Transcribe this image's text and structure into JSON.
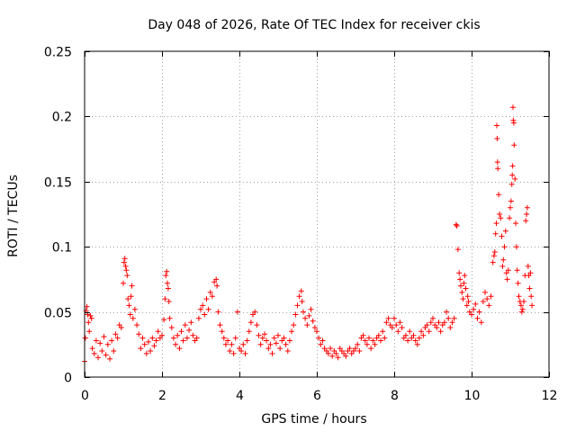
{
  "chart_data": {
    "type": "scatter",
    "title": "Day 048 of 2026, Rate Of TEC Index for receiver ckis",
    "xlabel": "GPS time / hours",
    "ylabel": "ROTI / TECUs",
    "xlim": [
      0,
      12
    ],
    "ylim": [
      0,
      0.25
    ],
    "x_ticks": [
      0,
      2,
      4,
      6,
      8,
      10,
      12
    ],
    "x_tick_labels": [
      "0",
      "2",
      "4",
      "6",
      "8",
      "10",
      "12"
    ],
    "y_ticks": [
      0,
      0.05,
      0.1,
      0.15,
      0.2,
      0.25
    ],
    "y_tick_labels": [
      "0",
      "0.05",
      "0.1",
      "0.15",
      "0.2",
      "0.25"
    ],
    "grid": true,
    "marker": "+",
    "color": "#ff0000",
    "series": [
      {
        "name": "ROTI",
        "points": [
          [
            0.0,
            0.012
          ],
          [
            0.02,
            0.03
          ],
          [
            0.04,
            0.051
          ],
          [
            0.06,
            0.054
          ],
          [
            0.08,
            0.048
          ],
          [
            0.1,
            0.042
          ],
          [
            0.12,
            0.035
          ],
          [
            0.15,
            0.047
          ],
          [
            0.18,
            0.045
          ],
          [
            0.2,
            0.022
          ],
          [
            0.25,
            0.018
          ],
          [
            0.3,
            0.028
          ],
          [
            0.35,
            0.015
          ],
          [
            0.4,
            0.026
          ],
          [
            0.45,
            0.02
          ],
          [
            0.5,
            0.031
          ],
          [
            0.55,
            0.017
          ],
          [
            0.6,
            0.025
          ],
          [
            0.65,
            0.014
          ],
          [
            0.7,
            0.028
          ],
          [
            0.75,
            0.02
          ],
          [
            0.8,
            0.033
          ],
          [
            0.85,
            0.03
          ],
          [
            0.9,
            0.04
          ],
          [
            0.95,
            0.038
          ],
          [
            1.0,
            0.072
          ],
          [
            1.02,
            0.088
          ],
          [
            1.04,
            0.091
          ],
          [
            1.06,
            0.085
          ],
          [
            1.08,
            0.082
          ],
          [
            1.1,
            0.078
          ],
          [
            1.12,
            0.06
          ],
          [
            1.15,
            0.055
          ],
          [
            1.18,
            0.048
          ],
          [
            1.2,
            0.062
          ],
          [
            1.22,
            0.07
          ],
          [
            1.25,
            0.045
          ],
          [
            1.3,
            0.052
          ],
          [
            1.35,
            0.04
          ],
          [
            1.4,
            0.033
          ],
          [
            1.45,
            0.022
          ],
          [
            1.5,
            0.03
          ],
          [
            1.55,
            0.025
          ],
          [
            1.6,
            0.018
          ],
          [
            1.65,
            0.027
          ],
          [
            1.7,
            0.02
          ],
          [
            1.75,
            0.03
          ],
          [
            1.8,
            0.024
          ],
          [
            1.85,
            0.028
          ],
          [
            1.9,
            0.035
          ],
          [
            1.95,
            0.03
          ],
          [
            2.0,
            0.032
          ],
          [
            2.05,
            0.044
          ],
          [
            2.08,
            0.06
          ],
          [
            2.1,
            0.078
          ],
          [
            2.12,
            0.081
          ],
          [
            2.14,
            0.072
          ],
          [
            2.16,
            0.068
          ],
          [
            2.18,
            0.058
          ],
          [
            2.2,
            0.045
          ],
          [
            2.25,
            0.038
          ],
          [
            2.3,
            0.03
          ],
          [
            2.35,
            0.025
          ],
          [
            2.4,
            0.032
          ],
          [
            2.45,
            0.022
          ],
          [
            2.5,
            0.035
          ],
          [
            2.55,
            0.028
          ],
          [
            2.6,
            0.04
          ],
          [
            2.65,
            0.03
          ],
          [
            2.7,
            0.036
          ],
          [
            2.75,
            0.042
          ],
          [
            2.8,
            0.032
          ],
          [
            2.85,
            0.028
          ],
          [
            2.9,
            0.03
          ],
          [
            2.95,
            0.045
          ],
          [
            3.0,
            0.052
          ],
          [
            3.05,
            0.055
          ],
          [
            3.1,
            0.048
          ],
          [
            3.15,
            0.06
          ],
          [
            3.2,
            0.052
          ],
          [
            3.25,
            0.065
          ],
          [
            3.3,
            0.062
          ],
          [
            3.35,
            0.073
          ],
          [
            3.4,
            0.075
          ],
          [
            3.42,
            0.07
          ],
          [
            3.45,
            0.05
          ],
          [
            3.5,
            0.04
          ],
          [
            3.55,
            0.035
          ],
          [
            3.6,
            0.03
          ],
          [
            3.65,
            0.025
          ],
          [
            3.7,
            0.028
          ],
          [
            3.75,
            0.02
          ],
          [
            3.8,
            0.025
          ],
          [
            3.85,
            0.018
          ],
          [
            3.9,
            0.03
          ],
          [
            3.95,
            0.05
          ],
          [
            4.0,
            0.022
          ],
          [
            4.05,
            0.02
          ],
          [
            4.1,
            0.025
          ],
          [
            4.15,
            0.018
          ],
          [
            4.2,
            0.028
          ],
          [
            4.25,
            0.035
          ],
          [
            4.3,
            0.042
          ],
          [
            4.35,
            0.048
          ],
          [
            4.4,
            0.05
          ],
          [
            4.45,
            0.04
          ],
          [
            4.5,
            0.032
          ],
          [
            4.55,
            0.025
          ],
          [
            4.6,
            0.03
          ],
          [
            4.65,
            0.033
          ],
          [
            4.7,
            0.028
          ],
          [
            4.75,
            0.022
          ],
          [
            4.8,
            0.025
          ],
          [
            4.85,
            0.018
          ],
          [
            4.9,
            0.03
          ],
          [
            4.95,
            0.026
          ],
          [
            5.0,
            0.032
          ],
          [
            5.05,
            0.022
          ],
          [
            5.1,
            0.028
          ],
          [
            5.15,
            0.03
          ],
          [
            5.2,
            0.025
          ],
          [
            5.25,
            0.02
          ],
          [
            5.3,
            0.028
          ],
          [
            5.35,
            0.035
          ],
          [
            5.4,
            0.04
          ],
          [
            5.45,
            0.048
          ],
          [
            5.5,
            0.055
          ],
          [
            5.55,
            0.062
          ],
          [
            5.6,
            0.066
          ],
          [
            5.62,
            0.058
          ],
          [
            5.65,
            0.05
          ],
          [
            5.7,
            0.045
          ],
          [
            5.75,
            0.04
          ],
          [
            5.8,
            0.047
          ],
          [
            5.85,
            0.052
          ],
          [
            5.9,
            0.043
          ],
          [
            5.95,
            0.038
          ],
          [
            6.0,
            0.035
          ],
          [
            6.05,
            0.03
          ],
          [
            6.1,
            0.025
          ],
          [
            6.15,
            0.028
          ],
          [
            6.2,
            0.022
          ],
          [
            6.25,
            0.02
          ],
          [
            6.3,
            0.018
          ],
          [
            6.35,
            0.022
          ],
          [
            6.4,
            0.016
          ],
          [
            6.45,
            0.02
          ],
          [
            6.5,
            0.018
          ],
          [
            6.55,
            0.015
          ],
          [
            6.6,
            0.022
          ],
          [
            6.65,
            0.02
          ],
          [
            6.7,
            0.018
          ],
          [
            6.75,
            0.016
          ],
          [
            6.8,
            0.02
          ],
          [
            6.85,
            0.022
          ],
          [
            6.9,
            0.018
          ],
          [
            6.95,
            0.02
          ],
          [
            7.0,
            0.022
          ],
          [
            7.05,
            0.025
          ],
          [
            7.1,
            0.02
          ],
          [
            7.15,
            0.03
          ],
          [
            7.2,
            0.032
          ],
          [
            7.25,
            0.028
          ],
          [
            7.3,
            0.025
          ],
          [
            7.35,
            0.03
          ],
          [
            7.4,
            0.022
          ],
          [
            7.45,
            0.028
          ],
          [
            7.5,
            0.025
          ],
          [
            7.55,
            0.03
          ],
          [
            7.6,
            0.032
          ],
          [
            7.65,
            0.028
          ],
          [
            7.7,
            0.035
          ],
          [
            7.75,
            0.03
          ],
          [
            7.8,
            0.042
          ],
          [
            7.85,
            0.045
          ],
          [
            7.9,
            0.04
          ],
          [
            7.95,
            0.038
          ],
          [
            8.0,
            0.045
          ],
          [
            8.05,
            0.04
          ],
          [
            8.1,
            0.035
          ],
          [
            8.15,
            0.042
          ],
          [
            8.2,
            0.038
          ],
          [
            8.25,
            0.03
          ],
          [
            8.3,
            0.032
          ],
          [
            8.35,
            0.028
          ],
          [
            8.4,
            0.035
          ],
          [
            8.45,
            0.03
          ],
          [
            8.5,
            0.032
          ],
          [
            8.55,
            0.028
          ],
          [
            8.6,
            0.025
          ],
          [
            8.65,
            0.03
          ],
          [
            8.7,
            0.035
          ],
          [
            8.75,
            0.032
          ],
          [
            8.8,
            0.038
          ],
          [
            8.85,
            0.04
          ],
          [
            8.9,
            0.035
          ],
          [
            8.95,
            0.042
          ],
          [
            9.0,
            0.045
          ],
          [
            9.05,
            0.04
          ],
          [
            9.1,
            0.038
          ],
          [
            9.15,
            0.042
          ],
          [
            9.2,
            0.035
          ],
          [
            9.25,
            0.04
          ],
          [
            9.3,
            0.042
          ],
          [
            9.35,
            0.05
          ],
          [
            9.4,
            0.045
          ],
          [
            9.45,
            0.038
          ],
          [
            9.5,
            0.042
          ],
          [
            9.55,
            0.045
          ],
          [
            9.6,
            0.117
          ],
          [
            9.62,
            0.116
          ],
          [
            9.65,
            0.098
          ],
          [
            9.68,
            0.08
          ],
          [
            9.7,
            0.075
          ],
          [
            9.72,
            0.07
          ],
          [
            9.75,
            0.065
          ],
          [
            9.78,
            0.06
          ],
          [
            9.8,
            0.072
          ],
          [
            9.82,
            0.078
          ],
          [
            9.85,
            0.068
          ],
          [
            9.88,
            0.055
          ],
          [
            9.9,
            0.062
          ],
          [
            9.92,
            0.058
          ],
          [
            9.95,
            0.05
          ],
          [
            10.0,
            0.048
          ],
          [
            10.05,
            0.052
          ],
          [
            10.1,
            0.056
          ],
          [
            10.15,
            0.045
          ],
          [
            10.2,
            0.05
          ],
          [
            10.25,
            0.042
          ],
          [
            10.3,
            0.058
          ],
          [
            10.35,
            0.065
          ],
          [
            10.4,
            0.06
          ],
          [
            10.45,
            0.055
          ],
          [
            10.5,
            0.062
          ],
          [
            10.55,
            0.088
          ],
          [
            10.58,
            0.093
          ],
          [
            10.6,
            0.096
          ],
          [
            10.62,
            0.11
          ],
          [
            10.64,
            0.118
          ],
          [
            10.65,
            0.193
          ],
          [
            10.66,
            0.183
          ],
          [
            10.67,
            0.165
          ],
          [
            10.68,
            0.16
          ],
          [
            10.7,
            0.14
          ],
          [
            10.72,
            0.125
          ],
          [
            10.75,
            0.122
          ],
          [
            10.78,
            0.108
          ],
          [
            10.8,
            0.085
          ],
          [
            10.82,
            0.09
          ],
          [
            10.85,
            0.1
          ],
          [
            10.88,
            0.112
          ],
          [
            10.9,
            0.08
          ],
          [
            10.92,
            0.075
          ],
          [
            10.95,
            0.082
          ],
          [
            10.98,
            0.122
          ],
          [
            11.0,
            0.13
          ],
          [
            11.02,
            0.135
          ],
          [
            11.04,
            0.148
          ],
          [
            11.05,
            0.155
          ],
          [
            11.06,
            0.162
          ],
          [
            11.07,
            0.207
          ],
          [
            11.08,
            0.197
          ],
          [
            11.09,
            0.195
          ],
          [
            11.1,
            0.178
          ],
          [
            11.12,
            0.152
          ],
          [
            11.14,
            0.118
          ],
          [
            11.16,
            0.1
          ],
          [
            11.18,
            0.082
          ],
          [
            11.2,
            0.072
          ],
          [
            11.22,
            0.062
          ],
          [
            11.25,
            0.058
          ],
          [
            11.28,
            0.055
          ],
          [
            11.3,
            0.05
          ],
          [
            11.32,
            0.052
          ],
          [
            11.35,
            0.058
          ],
          [
            11.38,
            0.078
          ],
          [
            11.4,
            0.12
          ],
          [
            11.42,
            0.125
          ],
          [
            11.44,
            0.13
          ],
          [
            11.46,
            0.085
          ],
          [
            11.48,
            0.078
          ],
          [
            11.5,
            0.068
          ],
          [
            11.52,
            0.08
          ],
          [
            11.54,
            0.062
          ],
          [
            11.56,
            0.055
          ]
        ]
      }
    ]
  }
}
